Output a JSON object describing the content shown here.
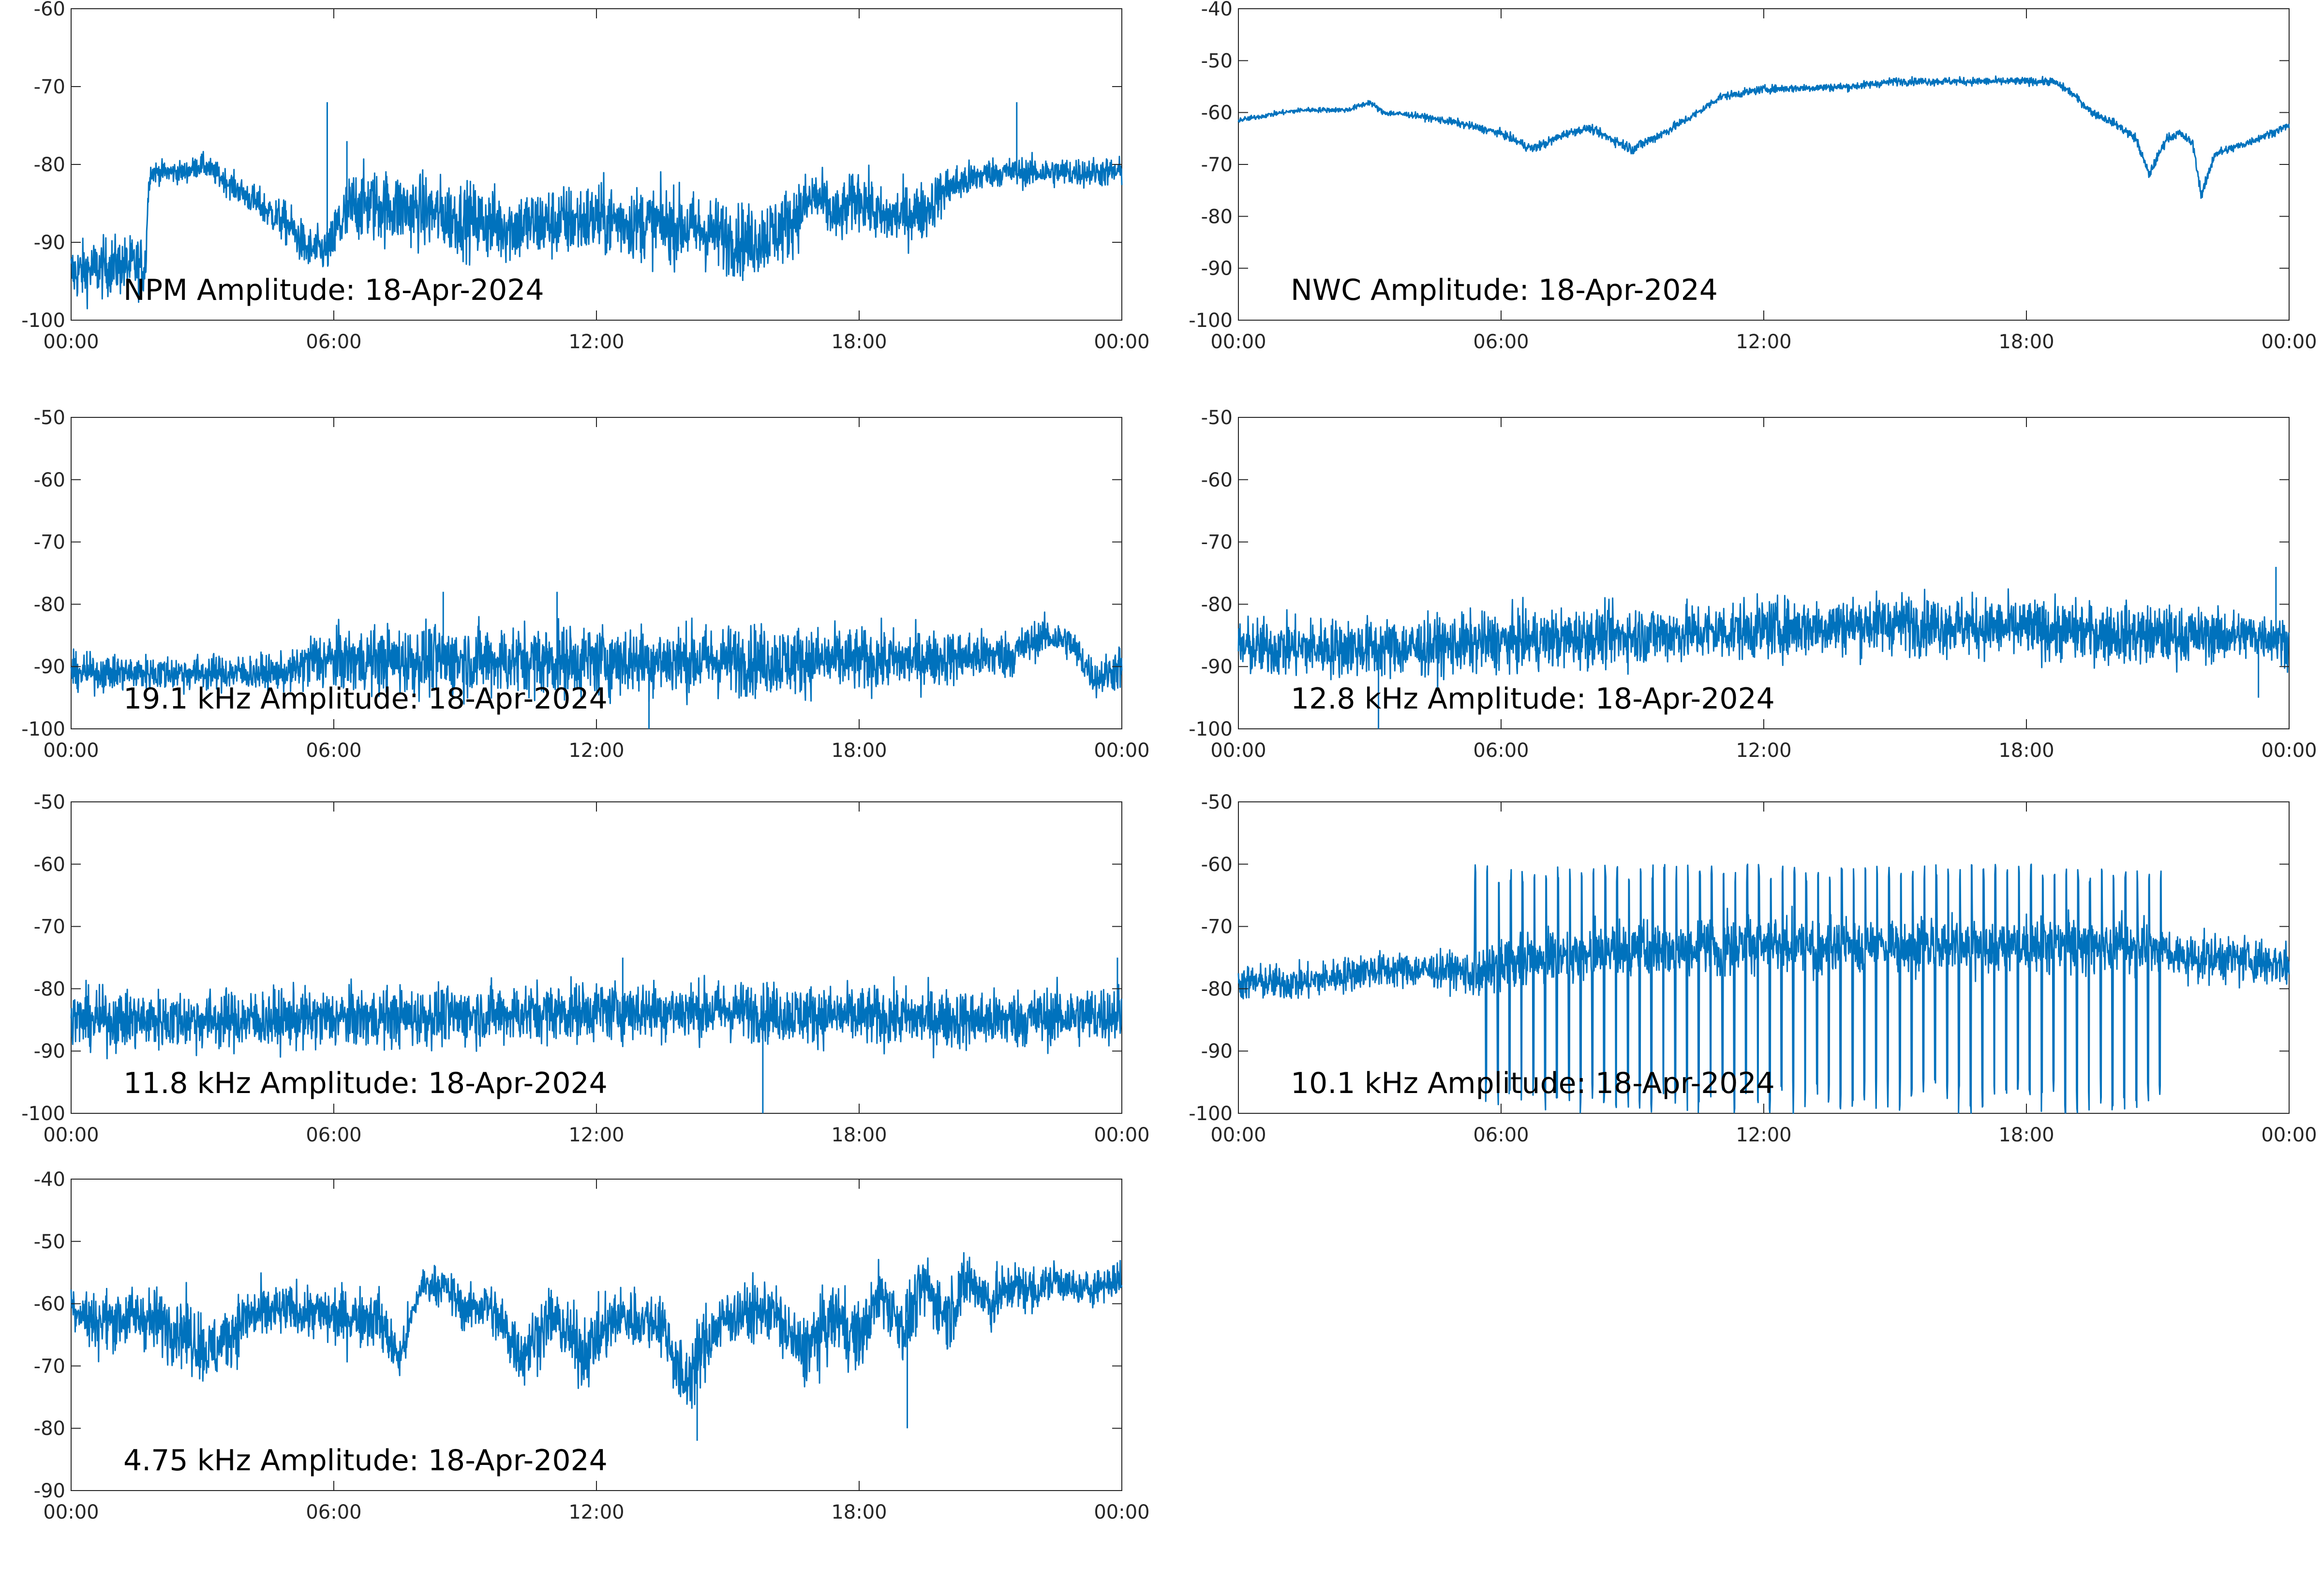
{
  "figure": {
    "line_color": "#0072BD",
    "axis_color": "#262626",
    "background": "#ffffff"
  },
  "chart_data": [
    {
      "type": "line",
      "title": "NPM Amplitude: 18-Apr-2024",
      "xlabel": "",
      "ylabel": "",
      "x_ticks": [
        "00:00",
        "06:00",
        "12:00",
        "18:00",
        "00:00"
      ],
      "xlim": [
        0,
        24
      ],
      "ylim": [
        -100,
        -60
      ],
      "y_ticks": [
        -60,
        -70,
        -80,
        -90,
        -100
      ],
      "grid": false,
      "series": [
        {
          "x": [
            0,
            1.0,
            1.7,
            1.75,
            1.8,
            2.0,
            2.6,
            3.0,
            4.0,
            5.0,
            5.4,
            5.9,
            6.1,
            6.5,
            8.0,
            10.0,
            12.0,
            14.0,
            15.5,
            16.3,
            17.0,
            17.5,
            18.0,
            18.5,
            19.5,
            20.0,
            21.0,
            21.5,
            22.0,
            23.0,
            24.0
          ],
          "center": [
            -94,
            -93,
            -93,
            -85,
            -81,
            -81,
            -81,
            -80,
            -84,
            -88,
            -91,
            -91,
            -88,
            -85,
            -86,
            -88,
            -87,
            -88,
            -90,
            -88,
            -84,
            -87,
            -84,
            -87,
            -86,
            -83,
            -81,
            -81,
            -81,
            -81,
            -81
          ],
          "spread": [
            4,
            4,
            4,
            2,
            1.5,
            1.5,
            1.5,
            1.5,
            2,
            3,
            3,
            3,
            5,
            5,
            5,
            5,
            5,
            5,
            5,
            5,
            4,
            4,
            4,
            4,
            4,
            3,
            2,
            2,
            2,
            2,
            2
          ]
        }
      ],
      "spikes": [
        {
          "x": 5.85,
          "y": -72
        },
        {
          "x": 6.3,
          "y": -77
        },
        {
          "x": 21.6,
          "y": -72
        }
      ]
    },
    {
      "type": "line",
      "title": "NWC Amplitude: 18-Apr-2024",
      "xlabel": "",
      "ylabel": "",
      "x_ticks": [
        "00:00",
        "06:00",
        "12:00",
        "18:00",
        "00:00"
      ],
      "xlim": [
        0,
        24
      ],
      "ylim": [
        -100,
        -40
      ],
      "y_ticks": [
        -40,
        -50,
        -60,
        -70,
        -80,
        -90,
        -100
      ],
      "grid": false,
      "series": [
        {
          "x": [
            0,
            1.0,
            1.5,
            2.5,
            3.0,
            3.3,
            4.0,
            5.0,
            6.0,
            6.7,
            7.0,
            7.5,
            8.0,
            8.5,
            9.0,
            9.7,
            10.5,
            11.0,
            12.0,
            14.0,
            15.0,
            16.0,
            17.0,
            18.0,
            18.6,
            19.0,
            19.5,
            20.0,
            20.5,
            20.8,
            21.2,
            21.5,
            21.8,
            22.0,
            22.3,
            23.0,
            24.0
          ],
          "center": [
            -61.5,
            -60,
            -59.5,
            -59.5,
            -58,
            -60,
            -60.5,
            -62,
            -64,
            -67,
            -66,
            -64,
            -63,
            -65,
            -67,
            -64,
            -60,
            -57,
            -55.5,
            -55,
            -54,
            -54,
            -54,
            -54,
            -54,
            -56,
            -60,
            -62,
            -65,
            -72,
            -65,
            -64,
            -66,
            -76,
            -68,
            -66,
            -62.5
          ],
          "spread": [
            0.5,
            0.5,
            0.5,
            0.5,
            0.6,
            0.6,
            0.6,
            0.8,
            0.8,
            1.0,
            1.0,
            0.8,
            0.8,
            1.0,
            1.2,
            1.0,
            0.8,
            0.8,
            0.8,
            0.8,
            0.8,
            0.8,
            0.8,
            0.8,
            0.8,
            0.8,
            0.8,
            0.8,
            1.0,
            1.0,
            1.0,
            0.8,
            1.0,
            1.2,
            1.0,
            0.8,
            0.8
          ]
        }
      ],
      "spikes": []
    },
    {
      "type": "line",
      "title": "19.1 kHz Amplitude: 18-Apr-2024",
      "xlabel": "",
      "ylabel": "",
      "x_ticks": [
        "00:00",
        "06:00",
        "12:00",
        "18:00",
        "00:00"
      ],
      "xlim": [
        0,
        24
      ],
      "ylim": [
        -100,
        -50
      ],
      "y_ticks": [
        -50,
        -60,
        -70,
        -80,
        -90,
        -100
      ],
      "grid": false,
      "series": [
        {
          "x": [
            0,
            3.0,
            5.0,
            5.5,
            8.0,
            12.0,
            16.0,
            19.0,
            21.5,
            22.2,
            22.8,
            23.4,
            24.0
          ],
          "center": [
            -91,
            -91,
            -91,
            -89,
            -89,
            -89,
            -89,
            -89,
            -88,
            -85,
            -86,
            -92,
            -90
          ],
          "spread": [
            3,
            3,
            3,
            5,
            6,
            6,
            6,
            5,
            4,
            3,
            3,
            3,
            4
          ]
        }
      ],
      "spikes": [
        {
          "x": 8.5,
          "y": -78
        },
        {
          "x": 11.1,
          "y": -78
        },
        {
          "x": 13.2,
          "y": -100
        }
      ]
    },
    {
      "type": "line",
      "title": "12.8 kHz Amplitude: 18-Apr-2024",
      "xlabel": "",
      "ylabel": "",
      "x_ticks": [
        "00:00",
        "06:00",
        "12:00",
        "18:00",
        "00:00"
      ],
      "xlim": [
        0,
        24
      ],
      "ylim": [
        -100,
        -50
      ],
      "y_ticks": [
        -50,
        -60,
        -70,
        -80,
        -90,
        -100
      ],
      "grid": false,
      "series": [
        {
          "x": [
            0,
            4.0,
            6.0,
            9.0,
            12.0,
            15.0,
            18.0,
            21.0,
            23.5,
            24.0
          ],
          "center": [
            -87,
            -87,
            -86,
            -85,
            -84,
            -83,
            -84,
            -85,
            -85,
            -86
          ],
          "spread": [
            5,
            5,
            5,
            5,
            5,
            5,
            5,
            5,
            4,
            4
          ]
        }
      ],
      "spikes": [
        {
          "x": 3.2,
          "y": -100
        },
        {
          "x": 23.7,
          "y": -74
        },
        {
          "x": 23.3,
          "y": -95
        }
      ]
    },
    {
      "type": "line",
      "title": "11.8 kHz Amplitude: 18-Apr-2024",
      "xlabel": "",
      "ylabel": "",
      "x_ticks": [
        "00:00",
        "06:00",
        "12:00",
        "18:00",
        "00:00"
      ],
      "xlim": [
        0,
        24
      ],
      "ylim": [
        -100,
        -50
      ],
      "y_ticks": [
        -50,
        -60,
        -70,
        -80,
        -90,
        -100
      ],
      "grid": false,
      "series": [
        {
          "x": [
            0,
            4.0,
            8.0,
            12.0,
            15.0,
            18.0,
            21.0,
            24.0
          ],
          "center": [
            -85,
            -85,
            -84.5,
            -83.5,
            -83.5,
            -84.5,
            -85,
            -84
          ],
          "spread": [
            5,
            5,
            5,
            5,
            5,
            5,
            5,
            5
          ]
        }
      ],
      "spikes": [
        {
          "x": 15.8,
          "y": -100
        },
        {
          "x": 12.6,
          "y": -75
        },
        {
          "x": 23.9,
          "y": -75
        }
      ]
    },
    {
      "type": "line",
      "title": "10.1 kHz Amplitude: 18-Apr-2024",
      "xlabel": "",
      "ylabel": "",
      "x_ticks": [
        "00:00",
        "06:00",
        "12:00",
        "18:00",
        "00:00"
      ],
      "xlim": [
        0,
        24
      ],
      "ylim": [
        -100,
        -50
      ],
      "y_ticks": [
        -50,
        -60,
        -70,
        -80,
        -90,
        -100
      ],
      "grid": false,
      "series": [
        {
          "x": [
            0,
            1.5,
            3.0,
            5.0,
            5.4,
            6.0,
            8.0,
            12.0,
            16.0,
            19.0,
            21.0,
            21.5,
            22.5,
            24.0
          ],
          "center": [
            -79,
            -79,
            -77,
            -77,
            -78,
            -76,
            -74,
            -73,
            -73,
            -73,
            -73,
            -75,
            -75,
            -76
          ],
          "spread": [
            3,
            3,
            3,
            3,
            4,
            4,
            4,
            4,
            4,
            4,
            4,
            4,
            4,
            4
          ]
        }
      ],
      "spikes": [],
      "burst": {
        "start": 5.4,
        "end": 21.2,
        "period": 0.27,
        "top": -63,
        "bottom": -100
      }
    },
    {
      "type": "line",
      "title": "4.75 kHz Amplitude: 18-Apr-2024",
      "xlabel": "",
      "ylabel": "",
      "x_ticks": [
        "00:00",
        "06:00",
        "12:00",
        "18:00",
        "00:00"
      ],
      "xlim": [
        0,
        24
      ],
      "ylim": [
        -90,
        -40
      ],
      "y_ticks": [
        -40,
        -50,
        -60,
        -70,
        -80,
        -90
      ],
      "grid": false,
      "series": [
        {
          "x": [
            0,
            0.5,
            1.5,
            2.5,
            3.2,
            4.0,
            5.0,
            6.0,
            7.0,
            7.5,
            8.0,
            8.5,
            9.0,
            9.5,
            10.3,
            11.0,
            11.7,
            12.5,
            13.5,
            14.0,
            14.5,
            15.0,
            16.0,
            16.7,
            17.5,
            18.0,
            18.5,
            19.0,
            19.5,
            20.0,
            20.5,
            21.0,
            21.5,
            22.0,
            22.5,
            23.0,
            24.0
          ],
          "center": [
            -60,
            -63,
            -62,
            -64,
            -68,
            -62,
            -61,
            -62,
            -62,
            -69,
            -57,
            -57,
            -61,
            -60,
            -68,
            -62,
            -68,
            -62,
            -63,
            -73,
            -66,
            -62,
            -61,
            -68,
            -62,
            -66,
            -58,
            -64,
            -57,
            -62,
            -56,
            -60,
            -57,
            -58,
            -56,
            -58,
            -56
          ],
          "spread": [
            4,
            5,
            5,
            6,
            6,
            5,
            4,
            5,
            5,
            4,
            3,
            3,
            4,
            4,
            6,
            5,
            6,
            5,
            5,
            6,
            6,
            5,
            5,
            6,
            6,
            6,
            5,
            6,
            5,
            6,
            5,
            5,
            4,
            4,
            3,
            3,
            3
          ]
        }
      ],
      "spikes": [
        {
          "x": 14.3,
          "y": -82
        },
        {
          "x": 19.1,
          "y": -80
        }
      ]
    }
  ]
}
